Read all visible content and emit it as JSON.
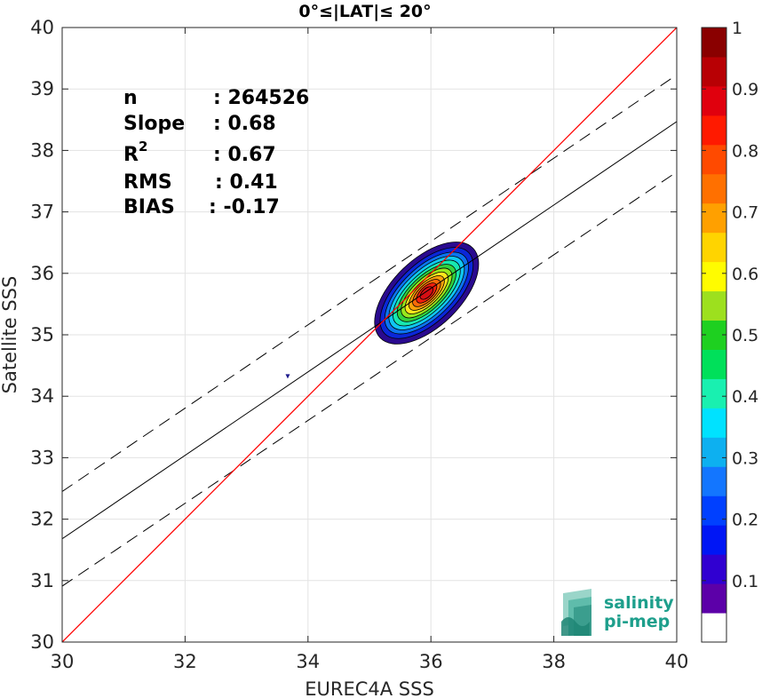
{
  "chart_data": {
    "type": "scatter",
    "subtype": "density-contour",
    "title": "0°≤|LAT|≤ 20°",
    "xlabel": "EUREC4A SSS",
    "ylabel": "Satellite SSS",
    "xlim": [
      30,
      40
    ],
    "ylim": [
      30,
      40
    ],
    "xticks": [
      30,
      32,
      34,
      36,
      38,
      40
    ],
    "yticks": [
      30,
      31,
      32,
      33,
      34,
      35,
      36,
      37,
      38,
      39,
      40
    ],
    "grid": true,
    "stats": [
      {
        "label": "n",
        "value": ": 264526"
      },
      {
        "label": "Slope",
        "value": ": 0.68"
      },
      {
        "label": "R",
        "sup": "2",
        "value": ": 0.67"
      },
      {
        "label": "RMS",
        "value": ": 0.41"
      },
      {
        "label": "BIAS",
        "value": ": -0.17"
      }
    ],
    "lines": {
      "identity": {
        "from": [
          30,
          30
        ],
        "to": [
          40,
          40
        ],
        "color": "#ff0000"
      },
      "fit": {
        "from": [
          30,
          31.68
        ],
        "to": [
          40,
          38.47
        ],
        "color": "#000000"
      },
      "fit_upper": {
        "from": [
          30,
          32.45
        ],
        "to": [
          40,
          39.23
        ],
        "color": "#000000",
        "dash": true
      },
      "fit_lower": {
        "from": [
          30,
          30.91
        ],
        "to": [
          40,
          37.65
        ],
        "color": "#000000",
        "dash": true
      }
    },
    "density": {
      "center": [
        35.93,
        35.68
      ],
      "angle_deg": 44,
      "levels": [
        {
          "level": 0.05,
          "a": 1.05,
          "b": 0.55,
          "color": "#2a0a8f"
        },
        {
          "level": 0.15,
          "a": 0.95,
          "b": 0.47,
          "color": "#0b27d8"
        },
        {
          "level": 0.25,
          "a": 0.86,
          "b": 0.41,
          "color": "#0c74f0"
        },
        {
          "level": 0.35,
          "a": 0.78,
          "b": 0.36,
          "color": "#10c7f3"
        },
        {
          "level": 0.45,
          "a": 0.7,
          "b": 0.31,
          "color": "#17e8b0"
        },
        {
          "level": 0.55,
          "a": 0.61,
          "b": 0.27,
          "color": "#33d23d"
        },
        {
          "level": 0.62,
          "a": 0.53,
          "b": 0.23,
          "color": "#98e81d"
        },
        {
          "level": 0.68,
          "a": 0.45,
          "b": 0.19,
          "color": "#fde51c"
        },
        {
          "level": 0.74,
          "a": 0.37,
          "b": 0.16,
          "color": "#fba10a"
        },
        {
          "level": 0.8,
          "a": 0.29,
          "b": 0.13,
          "color": "#fc6a08"
        },
        {
          "level": 0.86,
          "a": 0.21,
          "b": 0.1,
          "color": "#f41e0d"
        },
        {
          "level": 0.92,
          "a": 0.13,
          "b": 0.07,
          "color": "#d50e14"
        }
      ],
      "outlier": [
        33.67,
        34.33
      ]
    },
    "colorbar": {
      "ticks": [
        0.1,
        0.2,
        0.3,
        0.4,
        0.5,
        0.6,
        0.7,
        0.8,
        0.9,
        1
      ],
      "tick_labels": [
        "0.1",
        "0.2",
        "0.3",
        "0.4",
        "0.5",
        "0.6",
        "0.7",
        "0.8",
        "0.9",
        "1"
      ],
      "colors": [
        "#ffffff",
        "#5c00a8",
        "#3000d1",
        "#0016f5",
        "#0040ff",
        "#1376ff",
        "#0db0f0",
        "#00e2ff",
        "#19f0b0",
        "#00e05a",
        "#1ed020",
        "#9de01e",
        "#fffc00",
        "#ffd400",
        "#ffa000",
        "#ff7000",
        "#ff4a00",
        "#ff1a00",
        "#e0000d",
        "#b80004",
        "#8a0000"
      ]
    }
  },
  "logo": {
    "line1": "salinity",
    "line2": "pi-mep"
  }
}
